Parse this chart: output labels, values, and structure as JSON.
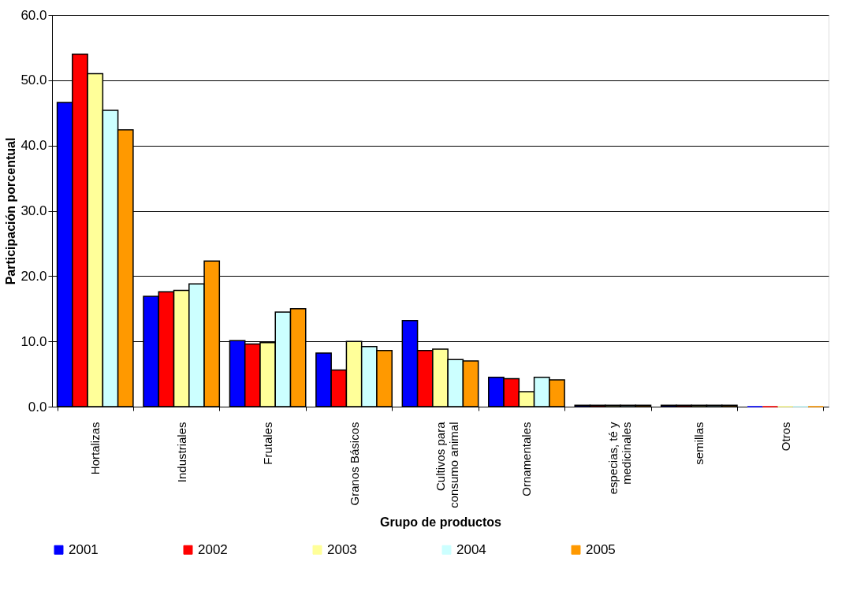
{
  "chart_data": {
    "type": "bar",
    "xlabel": "Grupo de productos",
    "ylabel": "Participación porcentual",
    "categories": [
      "Hortalizas",
      "Industriales",
      "Frutales",
      "Granos Básicos",
      "Cultivos para\nconsumo animal",
      "Ornamentales",
      "especias, té y\nmedicinales",
      "semillas",
      "Otros"
    ],
    "series": [
      {
        "name": "2001",
        "color": "#0000ff",
        "values": [
          46.6,
          16.9,
          10.1,
          8.2,
          13.2,
          4.5,
          0.2,
          0.2,
          0
        ]
      },
      {
        "name": "2002",
        "color": "#ff0000",
        "values": [
          54.0,
          17.6,
          9.6,
          5.6,
          8.6,
          4.3,
          0.2,
          0.2,
          0
        ]
      },
      {
        "name": "2003",
        "color": "#ffff99",
        "values": [
          51.0,
          17.8,
          9.8,
          10.0,
          8.8,
          2.3,
          0.2,
          0.2,
          0
        ]
      },
      {
        "name": "2004",
        "color": "#ccffff",
        "values": [
          45.4,
          18.8,
          14.5,
          9.2,
          7.2,
          4.5,
          0.2,
          0.2,
          0
        ]
      },
      {
        "name": "2005",
        "color": "#ff9900",
        "values": [
          42.4,
          22.3,
          15.0,
          8.6,
          7.0,
          4.1,
          0.2,
          0.2,
          0
        ]
      }
    ],
    "ylim": [
      0,
      60
    ],
    "yticks": [
      {
        "value": 0,
        "label": "0.0"
      },
      {
        "value": 10,
        "label": "10.0"
      },
      {
        "value": 20,
        "label": "20.0"
      },
      {
        "value": 30,
        "label": "30.0"
      },
      {
        "value": 40,
        "label": "40.0"
      },
      {
        "value": 50,
        "label": "50.0"
      },
      {
        "value": 60,
        "label": "60.0"
      }
    ],
    "grid": "y",
    "legend": "bottom"
  }
}
